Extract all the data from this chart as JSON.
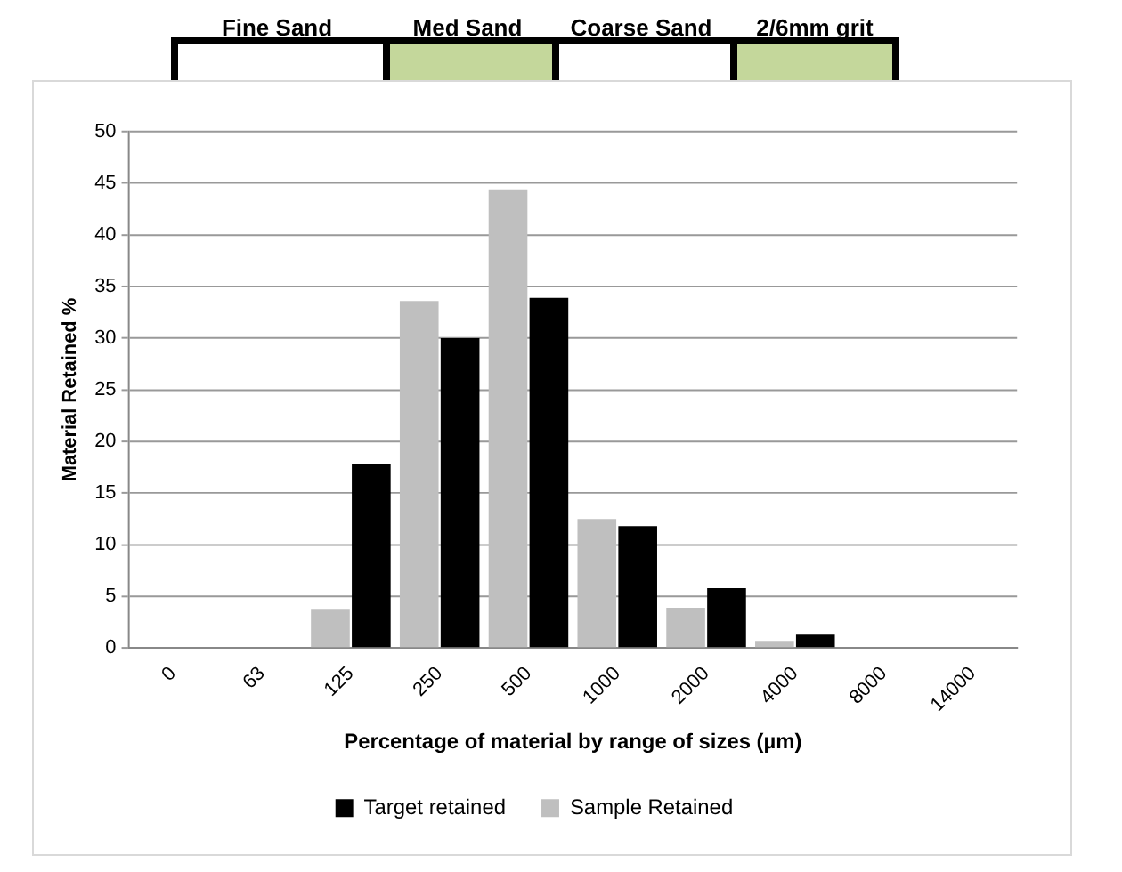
{
  "chart_data": {
    "type": "bar",
    "xlabel": "Percentage of material by range of sizes (µm)",
    "ylabel": "Material Retained %",
    "categories": [
      "0",
      "63",
      "125",
      "250",
      "500",
      "1000",
      "2000",
      "4000",
      "8000",
      "14000"
    ],
    "series": [
      {
        "name": "Sample Retained",
        "color": "#bfbfbf",
        "values": [
          0,
          0,
          3.8,
          33.6,
          44.4,
          12.5,
          3.9,
          0.7,
          0,
          0
        ]
      },
      {
        "name": "Target retained",
        "color": "#000000",
        "values": [
          0,
          0,
          17.8,
          30,
          33.9,
          11.8,
          5.8,
          1.3,
          0,
          0
        ]
      }
    ],
    "annotations": [
      "Fine Sand",
      "Med Sand",
      "Coarse Sand",
      "2/6mm grit"
    ],
    "ylim": [
      0,
      50
    ],
    "yticks": [
      0,
      5,
      10,
      15,
      20,
      25,
      30,
      35,
      40,
      45,
      50
    ],
    "grid": "y",
    "legend": "bottom"
  }
}
